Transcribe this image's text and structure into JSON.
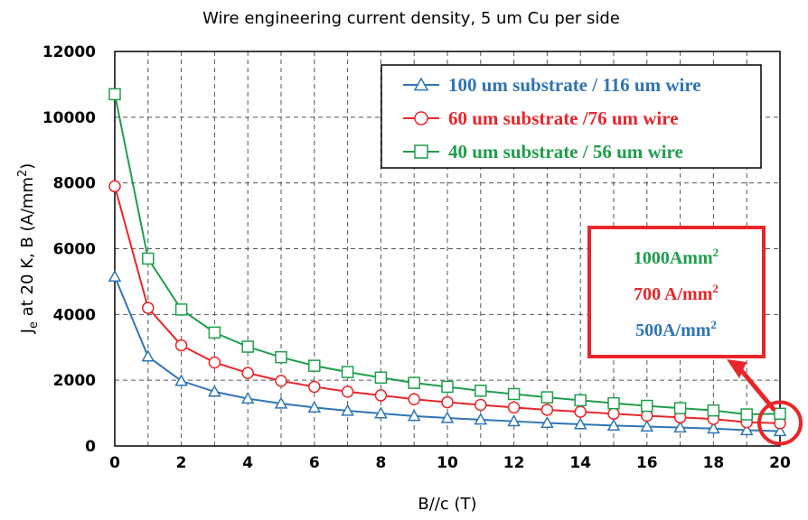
{
  "chart_data": {
    "type": "line",
    "title": "Wire engineering current density, 5 um Cu per side",
    "xlabel": "B//c (T)",
    "ylabel": {
      "main": "J",
      "sub": "e",
      "rest": " at 20 K, B (A/mm",
      "sup": "2",
      "end": ")"
    },
    "xlim": [
      0,
      20
    ],
    "ylim": [
      0,
      12000
    ],
    "x_ticks": [
      0,
      2,
      4,
      6,
      8,
      10,
      12,
      14,
      16,
      18,
      20
    ],
    "y_ticks": [
      0,
      2000,
      4000,
      6000,
      8000,
      10000,
      12000
    ],
    "grid": true,
    "legend_position": "top-right",
    "x": [
      0,
      1,
      2,
      3,
      4,
      5,
      6,
      7,
      8,
      9,
      10,
      11,
      12,
      13,
      14,
      15,
      16,
      17,
      18,
      19,
      20
    ],
    "series": [
      {
        "name": "100 um substrate / 116 um wire",
        "color": "#2e75b6",
        "marker": "triangle",
        "values": [
          5150,
          2720,
          1980,
          1650,
          1440,
          1290,
          1170,
          1070,
          990,
          910,
          850,
          800,
          750,
          700,
          660,
          620,
          590,
          560,
          530,
          480,
          450
        ]
      },
      {
        "name": "60 um substrate /76 um wire",
        "color": "#e8262a",
        "marker": "circle",
        "values": [
          7900,
          4200,
          3060,
          2540,
          2220,
          1980,
          1800,
          1650,
          1540,
          1420,
          1330,
          1250,
          1170,
          1100,
          1040,
          980,
          920,
          870,
          820,
          720,
          690
        ]
      },
      {
        "name": "40 um substrate / 56 um wire",
        "color": "#1f9e4c",
        "marker": "square",
        "values": [
          10700,
          5700,
          4150,
          3450,
          3020,
          2700,
          2440,
          2250,
          2080,
          1920,
          1800,
          1680,
          1580,
          1480,
          1390,
          1300,
          1220,
          1150,
          1080,
          960,
          980
        ]
      }
    ],
    "annotation": {
      "lines": [
        {
          "value": "1000Amm",
          "sup": "2",
          "color": "#1f9e4c"
        },
        {
          "value": "700 A/mm",
          "sup": "2",
          "color": "#e8262a"
        },
        {
          "value": "500A/mm",
          "sup": "2",
          "color": "#2e75b6"
        }
      ],
      "border_color": "#e8262a",
      "highlight_color": "#e8262a"
    }
  }
}
